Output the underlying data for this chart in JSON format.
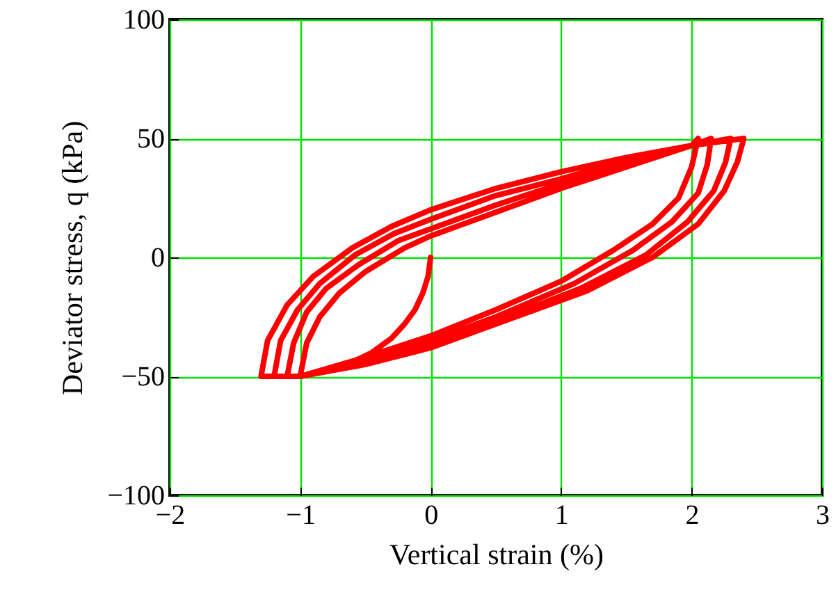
{
  "chart_data": {
    "type": "line",
    "xlabel": "Vertical strain (%)",
    "ylabel": "Deviator stress, q (kPa)",
    "xlim": [
      -2,
      3
    ],
    "ylim": [
      -100,
      100
    ],
    "xticks": [
      -2,
      -1,
      0,
      1,
      2,
      3
    ],
    "yticks": [
      -100,
      -50,
      0,
      50,
      100
    ],
    "grid": true,
    "marker": "none",
    "line_style": "solid",
    "series": [
      {
        "color": "#ff0000",
        "x": [
          0,
          -0.02,
          -0.06,
          -0.12,
          -0.2,
          -0.3,
          -0.45,
          -0.6,
          -0.8,
          -1.0,
          -0.95,
          -0.85,
          -0.7,
          -0.5,
          -0.2,
          0,
          0.5,
          1,
          1.5,
          2,
          2.05,
          2.0,
          1.9,
          1.7,
          1.4,
          1,
          0.5,
          0,
          -0.5,
          -1.0,
          -1.1,
          -1.05,
          -0.95,
          -0.8,
          -0.55,
          -0.25,
          0,
          0.5,
          1,
          1.5,
          2,
          2.15,
          2.12,
          2.05,
          1.85,
          1.55,
          1.1,
          0.5,
          0,
          -0.5,
          -1.0,
          -1.2,
          -1.15,
          -1.02,
          -0.85,
          -0.58,
          -0.28,
          0,
          0.5,
          1,
          1.5,
          2,
          2.3,
          2.26,
          2.17,
          1.97,
          1.65,
          1.15,
          0.5,
          0,
          -0.5,
          -1.0,
          -1.3,
          -1.25,
          -1.1,
          -0.9,
          -0.6,
          -0.3,
          0,
          0.5,
          1,
          1.5,
          2,
          2.4,
          2.35,
          2.25,
          2.05,
          1.7,
          1.2,
          0.5,
          0,
          -0.5,
          -1.0
        ],
        "values": [
          0,
          -8,
          -15,
          -22,
          -28,
          -34,
          -40,
          -44,
          -48,
          -50,
          -36,
          -25,
          -15,
          -6,
          4,
          9,
          19,
          29,
          38,
          47,
          50,
          38,
          25,
          14,
          3,
          -10,
          -22,
          -33,
          -42,
          -50,
          -50,
          -36,
          -23,
          -13,
          -3,
          7,
          12,
          22,
          31,
          40,
          47,
          50,
          39,
          27,
          15,
          3,
          -11,
          -25,
          -35,
          -43,
          -50,
          -50,
          -35,
          -22,
          -11,
          1,
          10,
          16,
          26,
          33,
          41,
          47,
          50,
          40,
          28,
          15,
          1,
          -13,
          -27,
          -37,
          -44,
          -50,
          -50,
          -35,
          -20,
          -8,
          4,
          13,
          20,
          29,
          36,
          42,
          47,
          50,
          40,
          28,
          14,
          0,
          -14,
          -28,
          -38,
          -45,
          -50
        ]
      }
    ]
  }
}
